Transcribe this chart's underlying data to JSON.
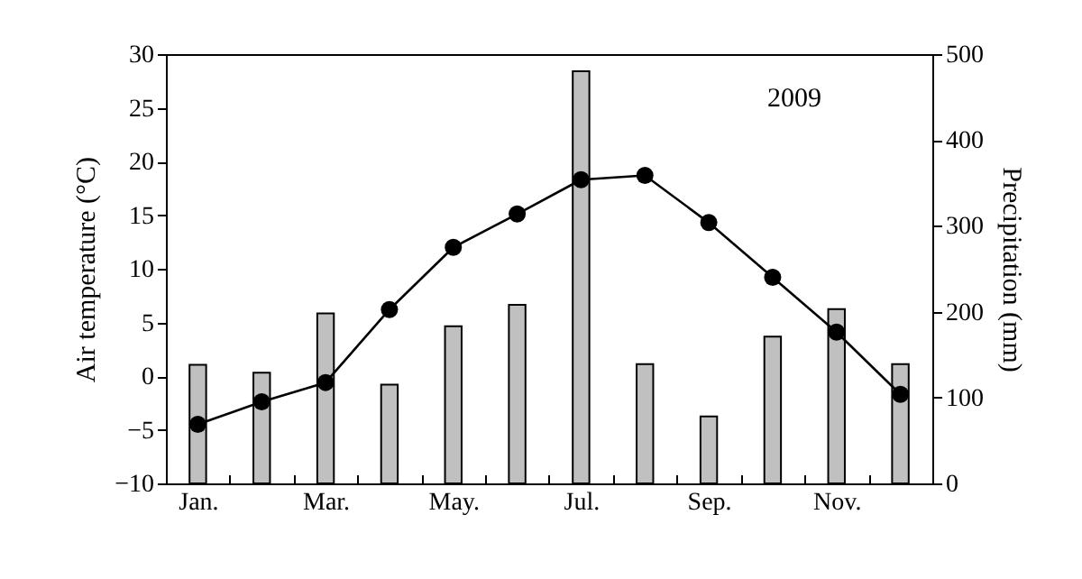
{
  "chart_data": {
    "type": "bar",
    "ylabel": "Air temperature (°C)",
    "y2label": "Precipitation (mm)",
    "annotations": [
      "2009"
    ],
    "categories": [
      "Jan.",
      null,
      "Mar.",
      null,
      "May.",
      null,
      "Jul.",
      null,
      "Sep.",
      null,
      "Nov.",
      null
    ],
    "series": [
      {
        "axis": "y2",
        "color": "#c0c0c0",
        "values": [
          138,
          129,
          198,
          115,
          183,
          208,
          480,
          139,
          78,
          171,
          203,
          139
        ]
      },
      {
        "type": "line",
        "color": "#000000",
        "values": [
          -4.5,
          -2.4,
          -0.6,
          6.2,
          12.0,
          15.1,
          18.3,
          18.7,
          14.3,
          9.2,
          4.1,
          -1.7
        ]
      }
    ],
    "ylim": [
      -10,
      30
    ],
    "yticks": [
      -10,
      -5,
      0,
      5,
      10,
      15,
      20,
      25,
      30
    ],
    "y2lim": [
      0,
      500
    ],
    "y2ticks": [
      0,
      100,
      200,
      300,
      400,
      500
    ],
    "grid": false,
    "marker": "circle"
  }
}
